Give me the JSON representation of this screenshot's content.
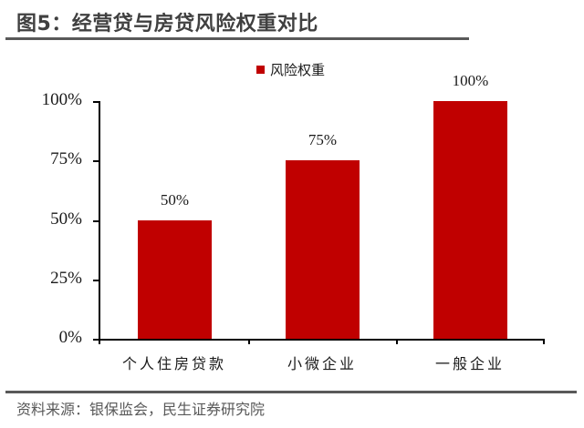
{
  "header": {
    "title": "图5：经营贷与房贷风险权重对比"
  },
  "footer": {
    "source": "资料来源：银保监会，民生证券研究院"
  },
  "colors": {
    "bar": "#C00000",
    "title": "#404040",
    "rule": "#595959"
  },
  "chart_data": {
    "type": "bar",
    "title": "经营贷与房贷风险权重对比",
    "categories": [
      "个人住房贷款",
      "小微企业",
      "一般企业"
    ],
    "series": [
      {
        "name": "风险权重",
        "values": [
          50,
          75,
          100
        ],
        "color": "#C00000"
      }
    ],
    "data_labels": [
      "50%",
      "75%",
      "100%"
    ],
    "xlabel": "",
    "ylabel": "",
    "ylim": [
      0,
      100
    ],
    "yticks": [
      "0%",
      "25%",
      "50%",
      "75%",
      "100%"
    ],
    "grid": false,
    "legend_position": "top"
  }
}
